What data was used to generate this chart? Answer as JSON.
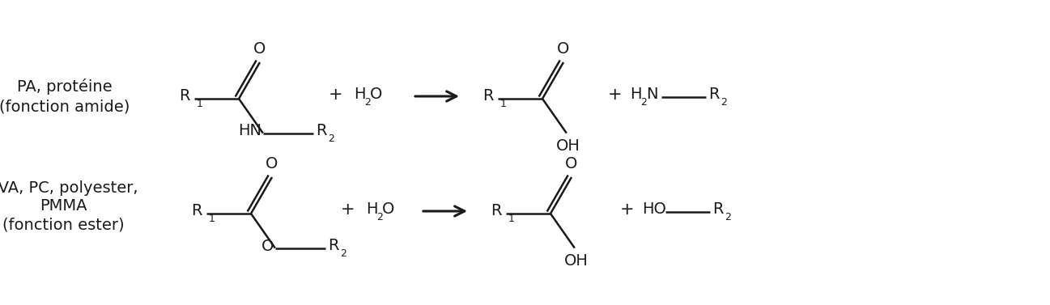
{
  "bg_color": "#ffffff",
  "text_color": "#1a1a1a",
  "line_color": "#1a1a1a",
  "fig_width": 12.97,
  "fig_height": 3.77,
  "dpi": 100,
  "label1_lines": [
    "PA, protéine",
    "(fonction amide)"
  ],
  "label2_lines": [
    "PVA, PC, polyester,",
    "PMMA",
    "(fonction ester)"
  ],
  "fontsize_main": 14,
  "fontsize_sub": 9,
  "lw": 1.8
}
